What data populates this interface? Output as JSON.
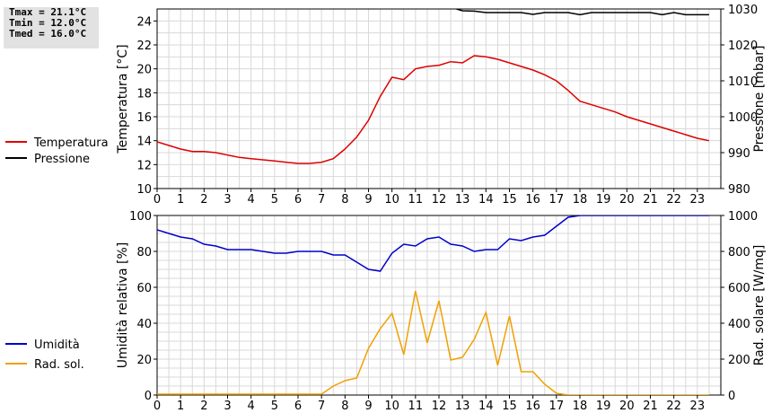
{
  "stats": {
    "tmax": "Tmax = 21.1°C",
    "tmin": "Tmin = 12.0°C",
    "tmed": "Tmed = 16.0°C"
  },
  "colors": {
    "temperature": "#dd0000",
    "pressure": "#000000",
    "humidity": "#0000cc",
    "radiation": "#f0a000",
    "grid": "#d8d8d8"
  },
  "chart_data": [
    {
      "type": "line",
      "title": "",
      "xlabel": "",
      "ylabel_left": "Temperatura [°C]",
      "ylabel_right": "Pressione [mbar]",
      "xlim": [
        0,
        24
      ],
      "ylim_left": [
        10,
        25
      ],
      "ylim_right": [
        980,
        1030
      ],
      "x_ticks": [
        "0",
        "1",
        "2",
        "3",
        "4",
        "5",
        "6",
        "7",
        "8",
        "9",
        "10",
        "11",
        "12",
        "13",
        "14",
        "15",
        "16",
        "17",
        "18",
        "19",
        "20",
        "21",
        "22",
        "23"
      ],
      "y_ticks_left": [
        "10",
        "12",
        "14",
        "16",
        "18",
        "20",
        "22",
        "24"
      ],
      "y_ticks_right": [
        "980",
        "990",
        "1000",
        "1010",
        "1020",
        "1030"
      ],
      "grid": true,
      "legend_position": "left",
      "series": [
        {
          "name": "Temperatura",
          "axis": "left",
          "color": "#dd0000",
          "x": [
            0,
            0.5,
            1,
            1.5,
            2,
            2.5,
            3,
            3.5,
            4,
            4.5,
            5,
            5.5,
            6,
            6.5,
            7,
            7.5,
            8,
            8.5,
            9,
            9.5,
            10,
            10.5,
            11,
            11.5,
            12,
            12.5,
            13,
            13.5,
            14,
            14.5,
            15,
            15.5,
            16,
            16.5,
            17,
            17.5,
            18,
            18.5,
            19,
            19.5,
            20,
            20.5,
            21,
            21.5,
            22,
            22.5,
            23,
            23.5
          ],
          "values": [
            13.9,
            13.6,
            13.3,
            13.1,
            13.1,
            13.0,
            12.8,
            12.6,
            12.5,
            12.4,
            12.3,
            12.2,
            12.1,
            12.1,
            12.2,
            12.5,
            13.3,
            14.3,
            15.7,
            17.7,
            19.3,
            19.1,
            20.0,
            20.2,
            20.3,
            20.6,
            20.5,
            21.1,
            21.0,
            20.8,
            20.5,
            20.2,
            19.9,
            19.5,
            19.0,
            18.2,
            17.3,
            17.0,
            16.7,
            16.4,
            16.0,
            15.7,
            15.4,
            15.1,
            14.8,
            14.5,
            14.2,
            14.0
          ]
        },
        {
          "name": "Pressione",
          "axis": "right",
          "color": "#000000",
          "x": [
            12,
            12.5,
            13,
            13.5,
            14,
            14.5,
            15,
            15.5,
            16,
            16.5,
            17,
            17.5,
            18,
            18.5,
            19,
            19.5,
            20,
            20.5,
            21,
            21.5,
            22,
            22.5,
            23,
            23.5
          ],
          "values": [
            1031,
            1030.5,
            1029.5,
            1029.4,
            1029,
            1029,
            1029,
            1029,
            1028.5,
            1029,
            1029,
            1029,
            1028.4,
            1029,
            1029,
            1029,
            1029,
            1029,
            1029,
            1028.4,
            1029,
            1028.4,
            1028.4,
            1028.4
          ]
        }
      ]
    },
    {
      "type": "line",
      "title": "",
      "xlabel": "",
      "ylabel_left": "Umidità relativa [%]",
      "ylabel_right": "Rad. solare [W/mq]",
      "xlim": [
        0,
        24
      ],
      "ylim_left": [
        0,
        100
      ],
      "ylim_right": [
        0,
        1000
      ],
      "x_ticks": [
        "0",
        "1",
        "2",
        "3",
        "4",
        "5",
        "6",
        "7",
        "8",
        "9",
        "10",
        "11",
        "12",
        "13",
        "14",
        "15",
        "16",
        "17",
        "18",
        "19",
        "20",
        "21",
        "22",
        "23"
      ],
      "y_ticks_left": [
        "0",
        "20",
        "40",
        "60",
        "80",
        "100"
      ],
      "y_ticks_right": [
        "0",
        "200",
        "400",
        "600",
        "800",
        "1000"
      ],
      "grid": true,
      "legend_position": "left",
      "series": [
        {
          "name": "Umidità",
          "axis": "left",
          "color": "#0000cc",
          "x": [
            0,
            0.5,
            1,
            1.5,
            2,
            2.5,
            3,
            3.5,
            4,
            4.5,
            5,
            5.5,
            6,
            6.5,
            7,
            7.5,
            8,
            8.5,
            9,
            9.5,
            10,
            10.5,
            11,
            11.5,
            12,
            12.5,
            13,
            13.5,
            14,
            14.5,
            15,
            15.5,
            16,
            16.5,
            17,
            17.5,
            18,
            18.5,
            19,
            19.5,
            20,
            20.5,
            21,
            21.5,
            22,
            22.5,
            23,
            23.5
          ],
          "values": [
            92,
            90,
            88,
            87,
            84,
            83,
            81,
            81,
            81,
            80,
            79,
            79,
            80,
            80,
            80,
            78,
            78,
            74,
            70,
            69,
            79,
            84,
            83,
            87,
            88,
            84,
            83,
            80,
            81,
            81,
            87,
            86,
            88,
            89,
            94,
            99,
            100,
            100,
            100,
            100,
            100,
            100,
            100,
            100,
            100,
            100,
            100,
            100
          ]
        },
        {
          "name": "Rad. sol.",
          "axis": "right",
          "color": "#f0a000",
          "x": [
            0,
            1,
            2,
            3,
            4,
            5,
            6,
            7,
            7.5,
            8,
            8.5,
            9,
            9.5,
            10,
            10.5,
            11,
            11.5,
            12,
            12.5,
            13,
            13.5,
            14,
            14.5,
            15,
            15.5,
            16,
            16.5,
            17,
            17.5,
            18,
            19,
            20,
            21,
            22,
            23,
            23.5
          ],
          "values": [
            5,
            5,
            5,
            5,
            5,
            5,
            5,
            5,
            50,
            80,
            95,
            260,
            370,
            455,
            225,
            580,
            290,
            525,
            195,
            210,
            310,
            460,
            165,
            440,
            130,
            130,
            60,
            10,
            0,
            0,
            0,
            0,
            0,
            0,
            0,
            0
          ]
        }
      ]
    }
  ]
}
